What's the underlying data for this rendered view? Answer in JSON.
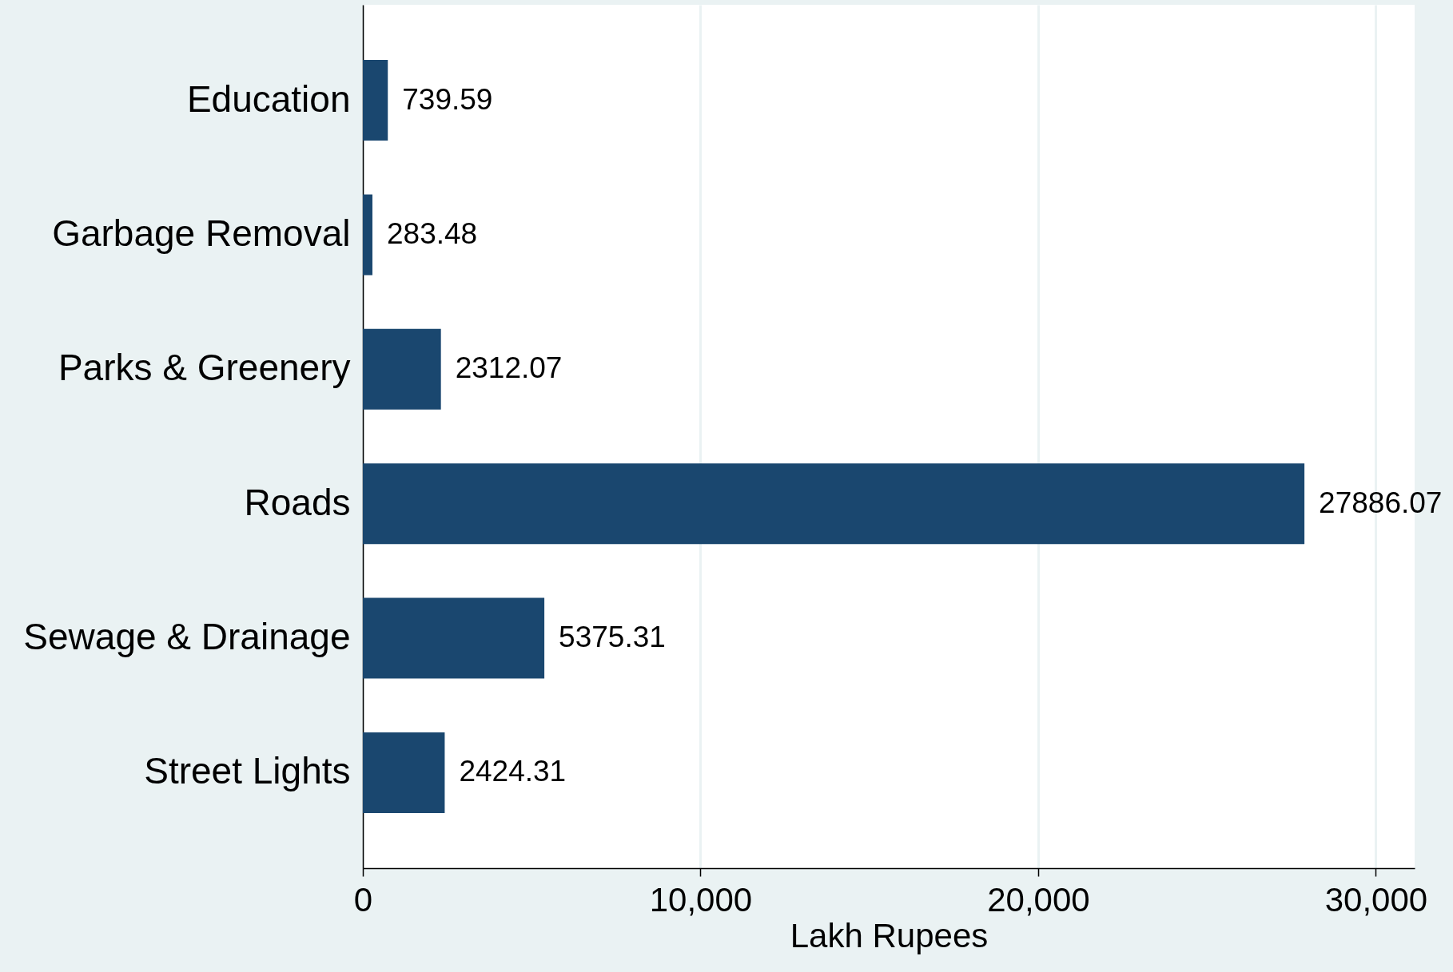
{
  "chart_data": {
    "type": "bar",
    "orientation": "horizontal",
    "xlabel": "Lakh Rupees",
    "categories": [
      "Education",
      "Garbage Removal",
      "Parks & Greenery",
      "Roads",
      "Sewage & Drainage",
      "Street Lights"
    ],
    "values": [
      739.59,
      283.48,
      2312.07,
      27886.07,
      5375.31,
      2424.31
    ],
    "color": "#1a476f",
    "xlim": [
      0,
      31150
    ],
    "xticks": [
      0,
      {
        "value": 10000,
        "label": "10,000"
      },
      {
        "value": 20000,
        "label": "20,000"
      },
      {
        "value": 30000,
        "label": "30,000"
      }
    ],
    "grid": "x",
    "data_labels": true
  }
}
